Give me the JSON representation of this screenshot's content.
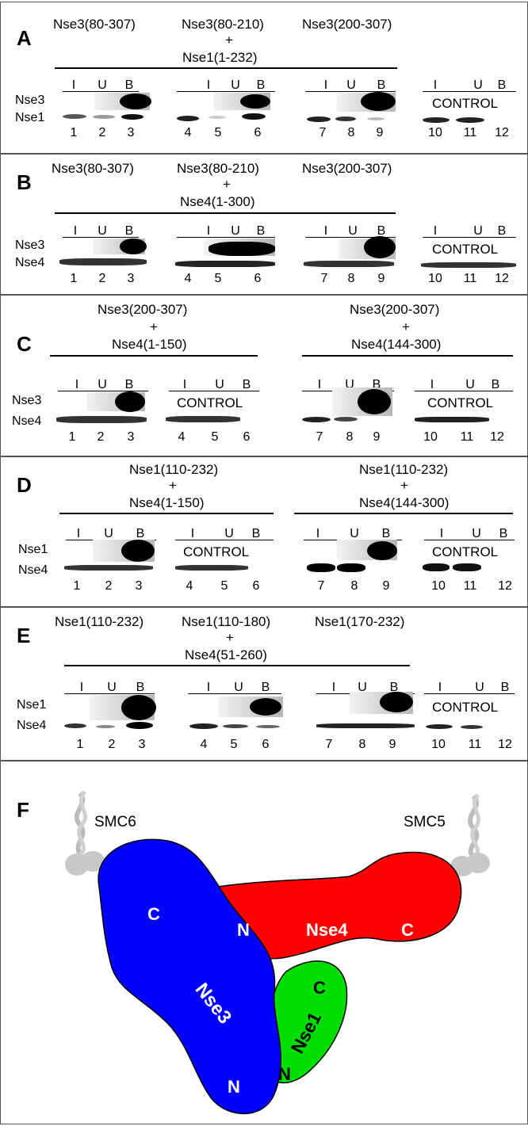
{
  "panels": {
    "A": {
      "letter": "A",
      "constructs": [
        "Nse3(80-307)",
        "Nse3(80-210)",
        "Nse3(200-307)"
      ],
      "plus": "+",
      "partner": "Nse1(1-232)",
      "rows": [
        "Nse3",
        "Nse1"
      ],
      "lane_headers": [
        "I",
        "U",
        "B"
      ],
      "control": "CONTROL",
      "lanes": [
        "1",
        "2",
        "3",
        "4",
        "5",
        "6",
        "7",
        "8",
        "9",
        "10",
        "11",
        "12"
      ]
    },
    "B": {
      "letter": "B",
      "constructs": [
        "Nse3(80-307)",
        "Nse3(80-210)",
        "Nse3(200-307)"
      ],
      "plus": "+",
      "partner": "Nse4(1-300)",
      "rows": [
        "Nse3",
        "Nse4"
      ],
      "lane_headers": [
        "I",
        "U",
        "B"
      ],
      "control": "CONTROL",
      "lanes": [
        "1",
        "2",
        "3",
        "4",
        "5",
        "6",
        "7",
        "8",
        "9",
        "10",
        "11",
        "12"
      ]
    },
    "C": {
      "letter": "C",
      "constructs": [
        "Nse3(200-307)",
        "Nse3(200-307)"
      ],
      "plus": "+",
      "partners": [
        "Nse4(1-150)",
        "Nse4(144-300)"
      ],
      "rows": [
        "Nse3",
        "Nse4"
      ],
      "lane_headers": [
        "I",
        "U",
        "B"
      ],
      "control": "CONTROL",
      "lanes": [
        "1",
        "2",
        "3",
        "4",
        "5",
        "6",
        "7",
        "8",
        "9",
        "10",
        "11",
        "12"
      ]
    },
    "D": {
      "letter": "D",
      "constructs": [
        "Nse1(110-232)",
        "Nse1(110-232)"
      ],
      "plus": "+",
      "partners": [
        "Nse4(1-150)",
        "Nse4(144-300)"
      ],
      "rows": [
        "Nse1",
        "Nse4"
      ],
      "lane_headers": [
        "I",
        "U",
        "B"
      ],
      "control": "CONTROL",
      "lanes": [
        "1",
        "2",
        "3",
        "4",
        "5",
        "6",
        "7",
        "8",
        "9",
        "10",
        "11",
        "12"
      ]
    },
    "E": {
      "letter": "E",
      "constructs": [
        "Nse1(110-232)",
        "Nse1(110-180)",
        "Nse1(170-232)"
      ],
      "plus": "+",
      "partner": "Nse4(51-260)",
      "rows": [
        "Nse1",
        "Nse4"
      ],
      "lane_headers": [
        "I",
        "U",
        "B"
      ],
      "control": "CONTROL",
      "lanes": [
        "1",
        "2",
        "3",
        "4",
        "5",
        "6",
        "7",
        "8",
        "9",
        "10",
        "11",
        "12"
      ]
    },
    "F": {
      "letter": "F",
      "smc6": "SMC6",
      "smc5": "SMC5",
      "nse3": {
        "name": "Nse3",
        "c": "C",
        "n": "N",
        "color": "#0000ff"
      },
      "nse4": {
        "name": "Nse4",
        "c": "C",
        "n": "N",
        "color": "#ff0000"
      },
      "nse1": {
        "name": "Nse1",
        "c": "C",
        "n": "N",
        "color": "#00dd00"
      }
    }
  }
}
